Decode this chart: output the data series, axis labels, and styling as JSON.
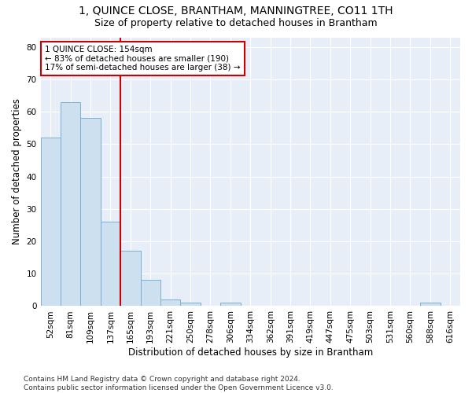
{
  "title": "1, QUINCE CLOSE, BRANTHAM, MANNINGTREE, CO11 1TH",
  "subtitle": "Size of property relative to detached houses in Brantham",
  "xlabel": "Distribution of detached houses by size in Brantham",
  "ylabel": "Number of detached properties",
  "bar_color": "#cce0f0",
  "bar_edge_color": "#7ab0d4",
  "categories": [
    "52sqm",
    "81sqm",
    "109sqm",
    "137sqm",
    "165sqm",
    "193sqm",
    "221sqm",
    "250sqm",
    "278sqm",
    "306sqm",
    "334sqm",
    "362sqm",
    "391sqm",
    "419sqm",
    "447sqm",
    "475sqm",
    "503sqm",
    "531sqm",
    "560sqm",
    "588sqm",
    "616sqm"
  ],
  "values": [
    52,
    63,
    58,
    26,
    17,
    8,
    2,
    1,
    0,
    1,
    0,
    0,
    0,
    0,
    0,
    0,
    0,
    0,
    0,
    1,
    0
  ],
  "ylim": [
    0,
    83
  ],
  "yticks": [
    0,
    10,
    20,
    30,
    40,
    50,
    60,
    70,
    80
  ],
  "vline_x": 3.5,
  "vline_color": "#cc0000",
  "annotation_line1": "1 QUINCE CLOSE: 154sqm",
  "annotation_line2": "← 83% of detached houses are smaller (190)",
  "annotation_line3": "17% of semi-detached houses are larger (38) →",
  "annotation_box_color": "#cc0000",
  "bg_color": "#e8eef8",
  "grid_color": "#ffffff",
  "footer": "Contains HM Land Registry data © Crown copyright and database right 2024.\nContains public sector information licensed under the Open Government Licence v3.0.",
  "title_fontsize": 10,
  "subtitle_fontsize": 9,
  "xlabel_fontsize": 8.5,
  "ylabel_fontsize": 8.5,
  "tick_fontsize": 7.5,
  "annotation_fontsize": 7.5,
  "footer_fontsize": 6.5
}
